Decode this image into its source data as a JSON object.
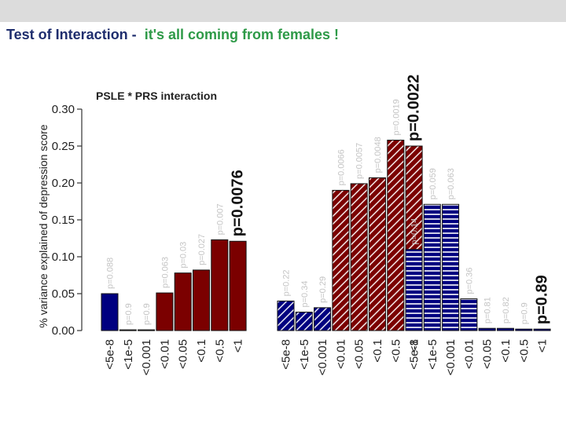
{
  "slide": {
    "title_part1": "Test of Interaction -",
    "title_part2": "it's all coming from females !"
  },
  "colors": {
    "title_dark": "#1f2e6e",
    "title_green": "#2e9a48",
    "navy": "#000080",
    "maroon": "#7b0000",
    "pvalue_gray": "#c4c4c4"
  },
  "chart_data": {
    "type": "bar",
    "title": "PSLE * PRS interaction",
    "ylabel": "% variance explained of depression score",
    "ylim": [
      0,
      0.3
    ],
    "yticks": [
      "0.00",
      "0.05",
      "0.10",
      "0.15",
      "0.20",
      "0.25",
      "0.30"
    ],
    "categories": [
      "<5e-8",
      "<1e-5",
      "<0.001",
      "<0.01",
      "<0.05",
      "<0.1",
      "<0.5",
      "<1"
    ],
    "groups": [
      {
        "name": "group-1",
        "segments": [
          {
            "color": "navy",
            "pattern": "solid",
            "values": [
              0.05,
              0.001,
              0.001
            ],
            "pvalues": [
              "p=0.088",
              "p=0.9",
              "p=0.9"
            ]
          },
          {
            "color": "maroon",
            "pattern": "solid",
            "values": [
              0.051,
              0.078,
              0.082,
              0.123,
              0.121
            ],
            "pvalues": [
              "p=0.063",
              "p=0.03",
              "p=0.027",
              "p=0.007",
              "p=0.0076"
            ]
          }
        ]
      },
      {
        "name": "group-2",
        "segments": [
          {
            "color": "navy",
            "pattern": "diagonal",
            "values": [
              0.04,
              0.025,
              0.031
            ],
            "pvalues": [
              "p=0.22",
              "p=0.34",
              "p=0.29"
            ]
          },
          {
            "color": "maroon",
            "pattern": "diagonal",
            "values": [
              0.19,
              0.199,
              0.207,
              0.258,
              0.25
            ],
            "pvalues": [
              "p=0.0066",
              "p=0.0057",
              "p=0.0048",
              "p=0.0019",
              "p=0.0022"
            ]
          }
        ]
      },
      {
        "name": "group-3",
        "segments": [
          {
            "color": "navy",
            "pattern": "horizontal",
            "values": [
              0.11,
              0.171,
              0.171,
              0.043,
              0.003,
              0.003,
              0.002,
              0.002
            ],
            "pvalues": [
              "p=0.14",
              "p=0.059",
              "p=0.063",
              "p=0.36",
              "p=0.81",
              "p=0.82",
              "p=0.9",
              "p=0.89"
            ]
          }
        ]
      }
    ],
    "highlighted_pvalues": [
      "p=0.0076",
      "p=0.0022",
      "p=0.89"
    ]
  }
}
